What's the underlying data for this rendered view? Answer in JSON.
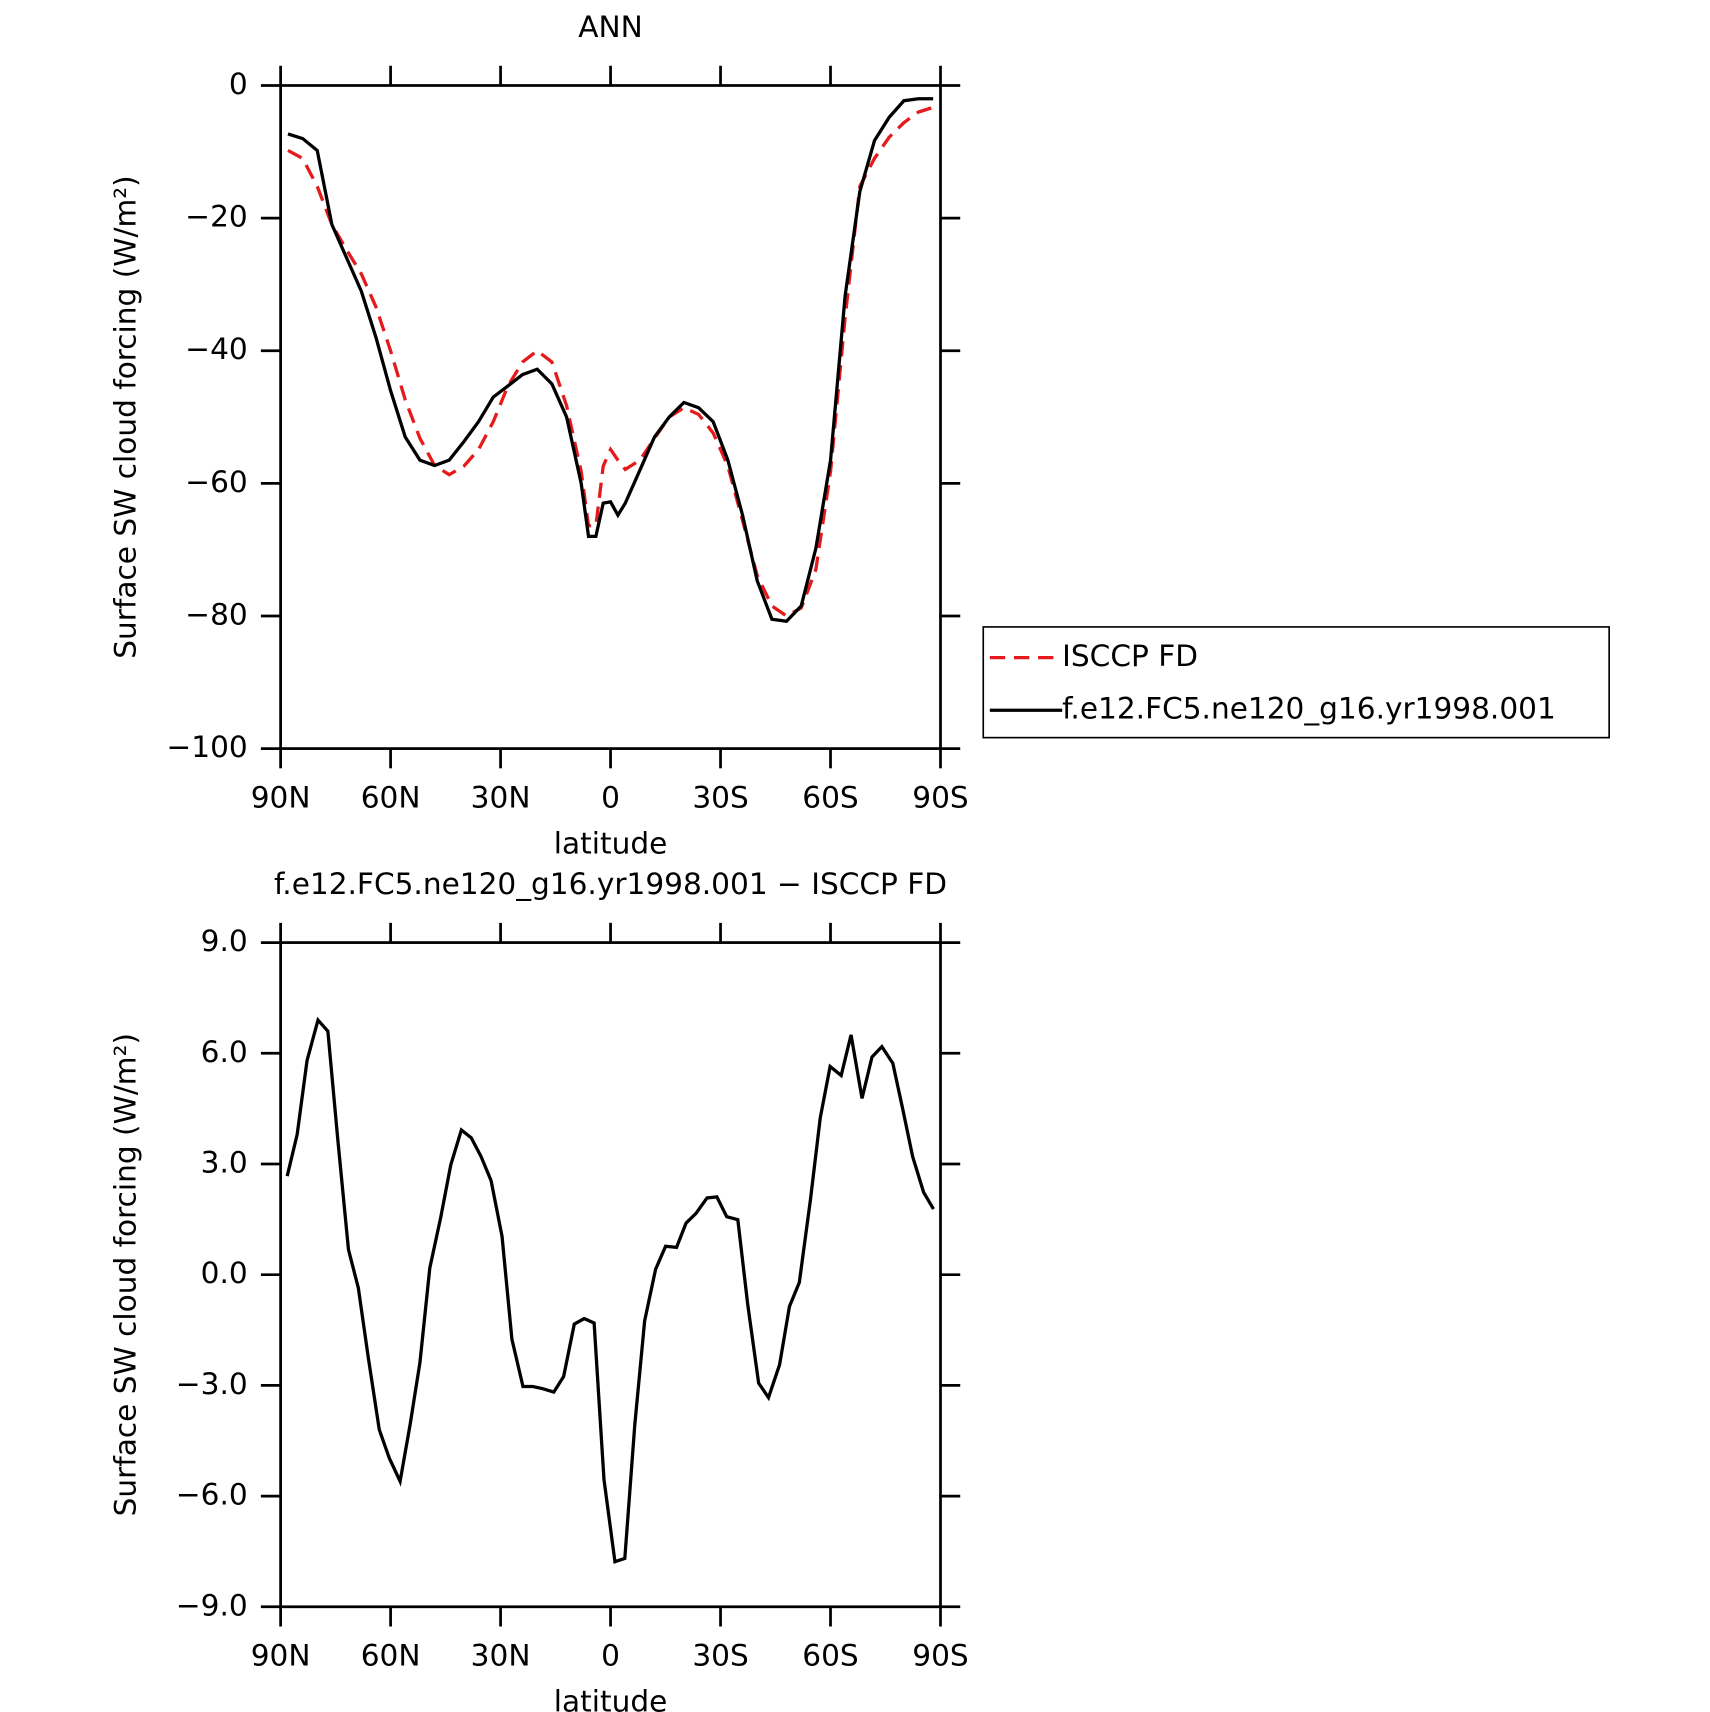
{
  "chart_data": [
    {
      "type": "line",
      "title": "ANN",
      "xlabel": "latitude",
      "ylabel": "Surface SW cloud forcing (W/m²)",
      "x": [
        88,
        84,
        80,
        76,
        72,
        68,
        64,
        60,
        56,
        52,
        48,
        44,
        40,
        36,
        32,
        28,
        24,
        20,
        16,
        12,
        8,
        6,
        4,
        2,
        0,
        -2,
        -4,
        -8,
        -12,
        -16,
        -20,
        -24,
        -28,
        -32,
        -36,
        -40,
        -44,
        -48,
        -52,
        -56,
        -60,
        -64,
        -68,
        -72,
        -76,
        -80,
        -84,
        -88
      ],
      "series": [
        {
          "name": "ISCCP FD",
          "color": "#e41a1c",
          "linestyle": "dashed",
          "values": [
            -9.8,
            -11,
            -15.2,
            -21,
            -24.8,
            -28.4,
            -33.4,
            -40,
            -47.4,
            -53.2,
            -57.3,
            -58.7,
            -57.4,
            -54.9,
            -50.7,
            -45.3,
            -41.7,
            -40,
            -41.7,
            -48.3,
            -58.2,
            -66.4,
            -66.4,
            -57.4,
            -54.9,
            -56.5,
            -57.9,
            -56.5,
            -53.2,
            -50,
            -48.6,
            -49.6,
            -52.4,
            -57.4,
            -65.6,
            -73.9,
            -78.5,
            -80,
            -78.8,
            -73,
            -58.2,
            -35,
            -15.2,
            -11,
            -7.8,
            -5.6,
            -4,
            -3.3
          ]
        },
        {
          "name": "f.e12.FC5.ne120_g16.yr1998.001",
          "color": "#000000",
          "linestyle": "solid",
          "values": [
            -7.3,
            -8,
            -9.8,
            -21,
            -26,
            -31,
            -38,
            -46,
            -53,
            -56.5,
            -57.3,
            -56.5,
            -53.7,
            -50.7,
            -47,
            -45.3,
            -43.6,
            -42.8,
            -45,
            -50,
            -60,
            -68,
            -68,
            -63,
            -62.8,
            -64.8,
            -63,
            -58,
            -53,
            -50,
            -47.8,
            -48.6,
            -50.7,
            -56.5,
            -64.8,
            -74.7,
            -80.5,
            -80.8,
            -78.5,
            -69.8,
            -56.5,
            -31.7,
            -16,
            -8.3,
            -4.8,
            -2.3,
            -2,
            -2
          ]
        }
      ],
      "xlim": [
        90,
        -90
      ],
      "xticks": [
        {
          "value": 90,
          "label": "90N"
        },
        {
          "value": 60,
          "label": "60N"
        },
        {
          "value": 30,
          "label": "30N"
        },
        0,
        {
          "value": -30,
          "label": "30S"
        },
        {
          "value": -60,
          "label": "60S"
        },
        {
          "value": -90,
          "label": "90S"
        }
      ],
      "ylim": [
        -100,
        0
      ],
      "yticks": [
        {
          "value": -100,
          "label": "−100"
        },
        {
          "value": -80,
          "label": "−80"
        },
        {
          "value": -60,
          "label": "−60"
        },
        {
          "value": -40,
          "label": "−40"
        },
        {
          "value": -20,
          "label": "−20"
        },
        0
      ],
      "legend": "outside-right"
    },
    {
      "type": "line",
      "title": "f.e12.FC5.ne120_g16.yr1998.001 − ISCCP FD",
      "xlabel": "latitude",
      "ylabel": "Surface SW cloud forcing (W/m²)",
      "x": [
        88.2,
        85.5,
        82.8,
        79.8,
        77.1,
        74.4,
        71.5,
        68.8,
        66.1,
        63.1,
        60.4,
        57.4,
        54.7,
        52.0,
        49.3,
        46.3,
        43.6,
        40.7,
        38.0,
        35.3,
        32.6,
        29.6,
        26.9,
        23.9,
        21.2,
        18.5,
        15.5,
        12.8,
        9.9,
        7.2,
        4.5,
        1.8,
        -1.2,
        -3.9,
        -6.6,
        -9.3,
        -12.3,
        -15.0,
        -18.0,
        -20.6,
        -23.3,
        -26.3,
        -29.0,
        -31.7,
        -34.7,
        -37.4,
        -40.4,
        -43.1,
        -46.1,
        -48.8,
        -51.5,
        -54.5,
        -57.2,
        -59.9,
        -62.9,
        -65.6,
        -68.6,
        -71.3,
        -74.0,
        -77.0,
        -79.7,
        -82.4,
        -85.4,
        -88.1
      ],
      "series": [
        {
          "name": "difference",
          "color": "#000000",
          "linestyle": "solid",
          "values": [
            2.67,
            3.8,
            5.8,
            6.9,
            6.6,
            3.65,
            0.68,
            -0.36,
            -2.23,
            -4.2,
            -4.96,
            -5.6,
            -4.07,
            -2.38,
            0.18,
            1.57,
            2.97,
            3.92,
            3.71,
            3.2,
            2.55,
            1.04,
            -1.75,
            -3.03,
            -3.03,
            -3.09,
            -3.18,
            -2.76,
            -1.34,
            -1.19,
            -1.31,
            -5.55,
            -7.78,
            -7.69,
            -4.07,
            -1.25,
            0.15,
            0.77,
            0.74,
            1.4,
            1.66,
            2.08,
            2.11,
            1.57,
            1.49,
            -0.8,
            -2.94,
            -3.33,
            -2.44,
            -0.86,
            -0.21,
            2.02,
            4.25,
            5.64,
            5.4,
            6.5,
            4.78,
            5.9,
            6.18,
            5.73,
            4.48,
            3.2,
            2.23,
            1.78
          ]
        }
      ],
      "xlim": [
        90,
        -90
      ],
      "xticks": [
        {
          "value": 90,
          "label": "90N"
        },
        {
          "value": 60,
          "label": "60N"
        },
        {
          "value": 30,
          "label": "30N"
        },
        0,
        {
          "value": -30,
          "label": "30S"
        },
        {
          "value": -60,
          "label": "60S"
        },
        {
          "value": -90,
          "label": "90S"
        }
      ],
      "ylim": [
        -9,
        9
      ],
      "yticks": [
        {
          "value": -9,
          "label": "−9.0"
        },
        {
          "value": -6,
          "label": "−6.0"
        },
        {
          "value": -3,
          "label": "−3.0"
        },
        {
          "value": 0,
          "label": "0.0"
        },
        {
          "value": 3,
          "label": "3.0"
        },
        {
          "value": 6,
          "label": "6.0"
        },
        {
          "value": 9,
          "label": "9.0"
        }
      ]
    }
  ]
}
